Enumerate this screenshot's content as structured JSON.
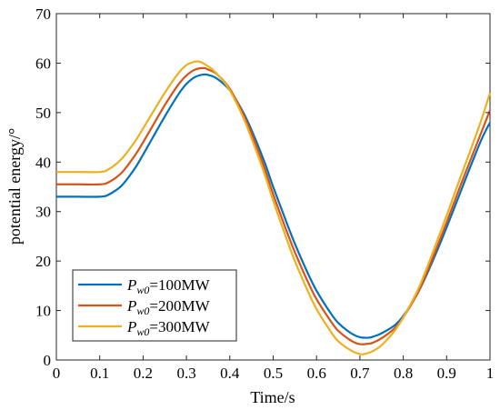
{
  "chart_data": {
    "type": "line",
    "title": "",
    "xlabel": "Time/s",
    "ylabel": "potential energy/°",
    "xlim": [
      0,
      1
    ],
    "ylim": [
      0,
      70
    ],
    "xticks": [
      0,
      0.1,
      0.2,
      0.3,
      0.4,
      0.5,
      0.6,
      0.7,
      0.8,
      0.9,
      1
    ],
    "xtick_labels": [
      "0",
      "0.1",
      "0.2",
      "0.3",
      "0.4",
      "0.5",
      "0.6",
      "0.7",
      "0.8",
      "0.9",
      "1"
    ],
    "yticks": [
      0,
      10,
      20,
      30,
      40,
      50,
      60,
      70
    ],
    "ytick_labels": [
      "0",
      "10",
      "20",
      "30",
      "40",
      "50",
      "60",
      "70"
    ],
    "grid": false,
    "legend_position": "bottom-left",
    "series": [
      {
        "name": "Pw0=100MW",
        "legend_symbol": "P",
        "legend_subscript": "w0",
        "legend_value": "=100MW",
        "color": "#0072BD",
        "x": [
          0,
          0.05,
          0.1,
          0.12,
          0.15,
          0.18,
          0.2,
          0.22,
          0.25,
          0.28,
          0.3,
          0.32,
          0.34,
          0.35,
          0.37,
          0.4,
          0.43,
          0.45,
          0.48,
          0.5,
          0.53,
          0.55,
          0.58,
          0.6,
          0.63,
          0.65,
          0.68,
          0.7,
          0.72,
          0.73,
          0.75,
          0.78,
          0.8,
          0.83,
          0.85,
          0.88,
          0.9,
          0.93,
          0.95,
          0.98,
          1.0
        ],
        "y": [
          33,
          33,
          33,
          33.4,
          35.2,
          38.6,
          41.5,
          44.6,
          49.2,
          53.5,
          55.8,
          57.2,
          57.7,
          57.6,
          56.9,
          54.5,
          50.2,
          46.5,
          40.0,
          35.0,
          28.0,
          23.5,
          17.5,
          14.0,
          9.8,
          7.5,
          5.4,
          4.6,
          4.5,
          4.7,
          5.4,
          7.0,
          8.9,
          13.0,
          16.5,
          22.5,
          26.8,
          33.5,
          38.0,
          44.5,
          48.0
        ]
      },
      {
        "name": "Pw0=200MW",
        "legend_symbol": "P",
        "legend_subscript": "w0",
        "legend_value": "=200MW",
        "color": "#D95319",
        "x": [
          0,
          0.05,
          0.1,
          0.12,
          0.15,
          0.18,
          0.2,
          0.22,
          0.25,
          0.28,
          0.3,
          0.32,
          0.34,
          0.35,
          0.37,
          0.4,
          0.43,
          0.45,
          0.48,
          0.5,
          0.53,
          0.55,
          0.58,
          0.6,
          0.63,
          0.65,
          0.68,
          0.7,
          0.72,
          0.73,
          0.75,
          0.78,
          0.8,
          0.83,
          0.85,
          0.88,
          0.9,
          0.93,
          0.95,
          0.98,
          1.0
        ],
        "y": [
          35.5,
          35.5,
          35.5,
          35.9,
          37.8,
          41.2,
          44.0,
          47.0,
          51.5,
          55.5,
          57.5,
          58.7,
          59.0,
          58.7,
          57.8,
          54.8,
          49.8,
          45.8,
          38.8,
          33.5,
          26.3,
          21.8,
          15.8,
          12.3,
          8.2,
          5.9,
          3.9,
          3.2,
          3.3,
          3.5,
          4.4,
          6.4,
          8.6,
          13.0,
          16.8,
          23.3,
          27.8,
          34.8,
          39.3,
          46.0,
          50.5
        ]
      },
      {
        "name": "Pw0=300MW",
        "legend_symbol": "P",
        "legend_subscript": "w0",
        "legend_value": "=300MW",
        "color": "#EDB120",
        "x": [
          0,
          0.05,
          0.1,
          0.12,
          0.15,
          0.18,
          0.2,
          0.22,
          0.25,
          0.28,
          0.3,
          0.32,
          0.33,
          0.34,
          0.36,
          0.38,
          0.4,
          0.43,
          0.45,
          0.48,
          0.5,
          0.53,
          0.55,
          0.58,
          0.6,
          0.63,
          0.65,
          0.68,
          0.7,
          0.71,
          0.73,
          0.75,
          0.78,
          0.8,
          0.83,
          0.85,
          0.88,
          0.9,
          0.93,
          0.95,
          0.98,
          1.0
        ],
        "y": [
          38,
          38,
          38,
          38.5,
          40.6,
          44.0,
          46.8,
          49.7,
          54.0,
          57.8,
          59.6,
          60.3,
          60.3,
          59.9,
          58.7,
          56.9,
          54.5,
          49.2,
          44.8,
          37.6,
          32.2,
          24.7,
          20.0,
          13.9,
          10.3,
          6.1,
          3.8,
          1.9,
          1.2,
          1.2,
          1.8,
          3.0,
          5.9,
          8.6,
          13.5,
          17.6,
          24.5,
          29.2,
          36.5,
          41.2,
          48.5,
          54.0
        ]
      }
    ]
  }
}
